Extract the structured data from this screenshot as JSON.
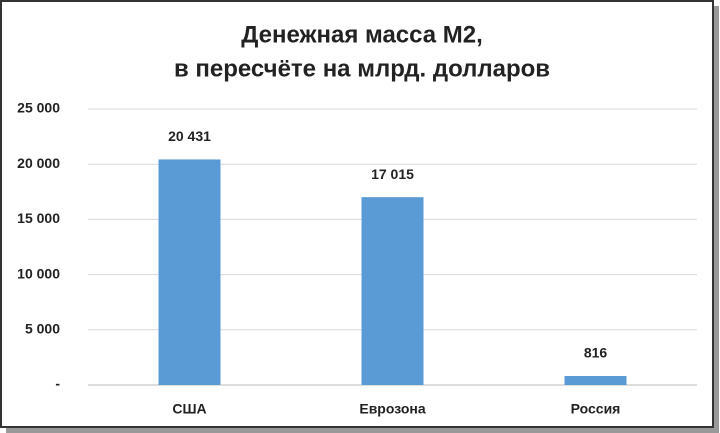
{
  "chart_data": {
    "type": "bar",
    "title": [
      "Денежная масса М2,",
      "в пересчёте на млрд. долларов"
    ],
    "categories": [
      "США",
      "Еврозона",
      "Россия"
    ],
    "values": [
      20431,
      17015,
      816
    ],
    "value_labels": [
      "20 431",
      "17 015",
      "816"
    ],
    "color": "#5b9bd5",
    "ylim": [
      0,
      25000
    ],
    "yticks": [
      {
        "value": 0,
        "label": "-"
      },
      {
        "value": 5000,
        "label": "5 000"
      },
      {
        "value": 10000,
        "label": "10 000"
      },
      {
        "value": 15000,
        "label": "15 000"
      },
      {
        "value": 20000,
        "label": "20 000"
      },
      {
        "value": 25000,
        "label": "25 000"
      }
    ],
    "grid": true
  }
}
